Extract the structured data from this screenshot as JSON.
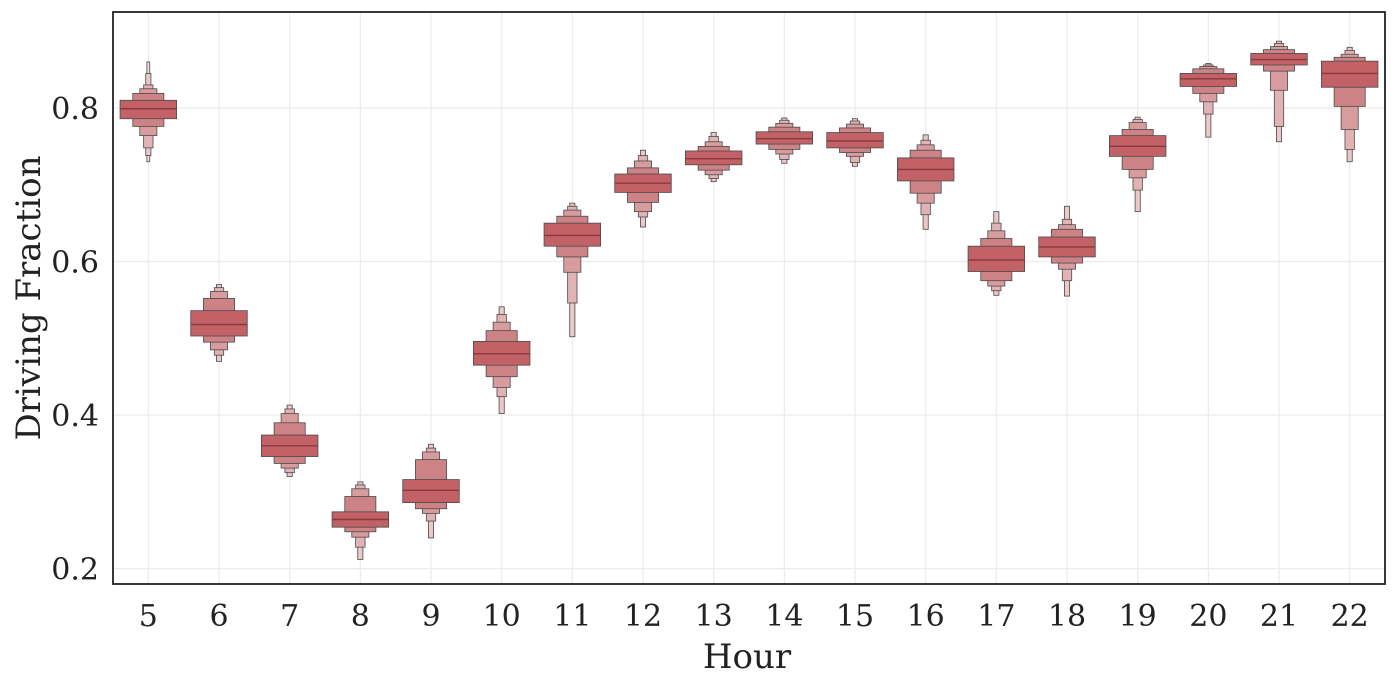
{
  "chart_data": {
    "type": "boxen",
    "title": "",
    "xlabel": "Hour",
    "ylabel": "Driving Fraction",
    "ylim": [
      0.18,
      0.925
    ],
    "yticks": [
      "0.2",
      "0.4",
      "0.6",
      "0.8"
    ],
    "grid": true,
    "legend": "none",
    "colors": {
      "box": "#c0585c",
      "box_edge": "#4a4a4a",
      "median_line": "#8a3a3e",
      "grid": "#ebebeb",
      "frame": "#222222"
    },
    "categories": [
      "5",
      "6",
      "7",
      "8",
      "9",
      "10",
      "11",
      "12",
      "13",
      "14",
      "15",
      "16",
      "17",
      "18",
      "19",
      "20",
      "21",
      "22"
    ],
    "distributions": [
      {
        "hour": "5",
        "median": 0.799,
        "letter_values": [
          [
            0.786,
            0.81
          ],
          [
            0.776,
            0.819
          ],
          [
            0.764,
            0.825
          ],
          [
            0.748,
            0.83
          ],
          [
            0.738,
            0.845
          ],
          [
            0.73,
            0.86
          ]
        ]
      },
      {
        "hour": "6",
        "median": 0.518,
        "letter_values": [
          [
            0.503,
            0.536
          ],
          [
            0.495,
            0.552
          ],
          [
            0.485,
            0.561
          ],
          [
            0.478,
            0.566
          ],
          [
            0.47,
            0.57
          ]
        ]
      },
      {
        "hour": "7",
        "median": 0.36,
        "letter_values": [
          [
            0.346,
            0.374
          ],
          [
            0.337,
            0.39
          ],
          [
            0.331,
            0.402
          ],
          [
            0.325,
            0.408
          ],
          [
            0.32,
            0.413
          ]
        ]
      },
      {
        "hour": "8",
        "median": 0.264,
        "letter_values": [
          [
            0.254,
            0.274
          ],
          [
            0.248,
            0.294
          ],
          [
            0.241,
            0.304
          ],
          [
            0.228,
            0.309
          ],
          [
            0.212,
            0.313
          ]
        ]
      },
      {
        "hour": "9",
        "median": 0.302,
        "letter_values": [
          [
            0.286,
            0.316
          ],
          [
            0.278,
            0.342
          ],
          [
            0.272,
            0.352
          ],
          [
            0.262,
            0.357
          ],
          [
            0.24,
            0.362
          ]
        ]
      },
      {
        "hour": "10",
        "median": 0.48,
        "letter_values": [
          [
            0.465,
            0.496
          ],
          [
            0.45,
            0.51
          ],
          [
            0.436,
            0.521
          ],
          [
            0.424,
            0.531
          ],
          [
            0.402,
            0.541
          ]
        ]
      },
      {
        "hour": "11",
        "median": 0.634,
        "letter_values": [
          [
            0.62,
            0.65
          ],
          [
            0.606,
            0.659
          ],
          [
            0.586,
            0.667
          ],
          [
            0.546,
            0.672
          ],
          [
            0.502,
            0.676
          ]
        ]
      },
      {
        "hour": "12",
        "median": 0.702,
        "letter_values": [
          [
            0.69,
            0.714
          ],
          [
            0.677,
            0.722
          ],
          [
            0.665,
            0.731
          ],
          [
            0.658,
            0.738
          ],
          [
            0.645,
            0.745
          ]
        ]
      },
      {
        "hour": "13",
        "median": 0.734,
        "letter_values": [
          [
            0.726,
            0.744
          ],
          [
            0.719,
            0.75
          ],
          [
            0.713,
            0.756
          ],
          [
            0.708,
            0.763
          ],
          [
            0.704,
            0.768
          ]
        ]
      },
      {
        "hour": "14",
        "median": 0.76,
        "letter_values": [
          [
            0.753,
            0.769
          ],
          [
            0.746,
            0.775
          ],
          [
            0.74,
            0.78
          ],
          [
            0.733,
            0.784
          ],
          [
            0.728,
            0.787
          ]
        ]
      },
      {
        "hour": "15",
        "median": 0.757,
        "letter_values": [
          [
            0.748,
            0.768
          ],
          [
            0.742,
            0.774
          ],
          [
            0.737,
            0.779
          ],
          [
            0.729,
            0.783
          ],
          [
            0.724,
            0.786
          ]
        ]
      },
      {
        "hour": "16",
        "median": 0.72,
        "letter_values": [
          [
            0.705,
            0.735
          ],
          [
            0.689,
            0.745
          ],
          [
            0.676,
            0.752
          ],
          [
            0.661,
            0.758
          ],
          [
            0.642,
            0.765
          ]
        ]
      },
      {
        "hour": "17",
        "median": 0.602,
        "letter_values": [
          [
            0.587,
            0.62
          ],
          [
            0.575,
            0.63
          ],
          [
            0.568,
            0.64
          ],
          [
            0.562,
            0.65
          ],
          [
            0.556,
            0.665
          ]
        ]
      },
      {
        "hour": "18",
        "median": 0.619,
        "letter_values": [
          [
            0.606,
            0.632
          ],
          [
            0.598,
            0.642
          ],
          [
            0.59,
            0.648
          ],
          [
            0.575,
            0.655
          ],
          [
            0.555,
            0.672
          ]
        ]
      },
      {
        "hour": "19",
        "median": 0.75,
        "letter_values": [
          [
            0.737,
            0.764
          ],
          [
            0.72,
            0.772
          ],
          [
            0.709,
            0.781
          ],
          [
            0.693,
            0.785
          ],
          [
            0.665,
            0.788
          ]
        ]
      },
      {
        "hour": "20",
        "median": 0.838,
        "letter_values": [
          [
            0.828,
            0.845
          ],
          [
            0.819,
            0.851
          ],
          [
            0.808,
            0.854
          ],
          [
            0.792,
            0.856
          ],
          [
            0.762,
            0.858
          ]
        ]
      },
      {
        "hour": "21",
        "median": 0.863,
        "letter_values": [
          [
            0.856,
            0.871
          ],
          [
            0.848,
            0.876
          ],
          [
            0.823,
            0.88
          ],
          [
            0.776,
            0.884
          ],
          [
            0.756,
            0.887
          ]
        ]
      },
      {
        "hour": "22",
        "median": 0.845,
        "letter_values": [
          [
            0.827,
            0.861
          ],
          [
            0.802,
            0.866
          ],
          [
            0.772,
            0.87
          ],
          [
            0.746,
            0.875
          ],
          [
            0.73,
            0.879
          ]
        ]
      }
    ]
  }
}
